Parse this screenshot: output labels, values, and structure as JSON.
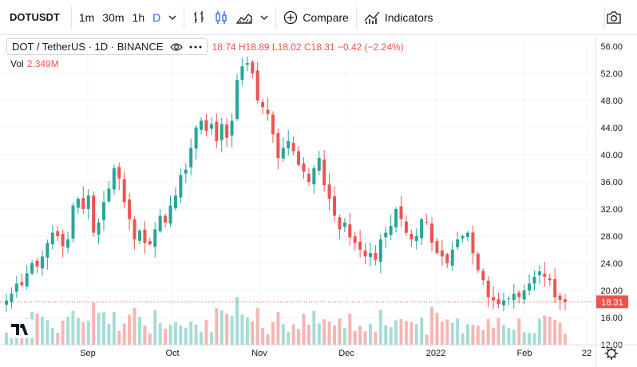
{
  "toolbar": {
    "symbol": "DOTUSDT",
    "intervals": [
      "1m",
      "30m",
      "1h",
      "D"
    ],
    "active_interval": "D",
    "compare_label": "Compare",
    "indicators_label": "Indicators"
  },
  "legend": {
    "title": "DOT / TetherUS · 1D · BINANCE",
    "ohlc": "18.74 H18.89 L18.02 C18.31 −0.42 (−2.24%)",
    "volume_label": "Vol",
    "volume_value": "2.349M"
  },
  "colors": {
    "up": "#26a69a",
    "down": "#ef5350",
    "vol_up": "#a7dcd6",
    "vol_down": "#f7b5b3",
    "grid": "#f0f3fa"
  },
  "chart_data": {
    "type": "candlestick",
    "symbol": "DOTUSDT",
    "timeframe": "1D",
    "exchange": "BINANCE",
    "x_axis_labels": [
      "Sep",
      "Oct",
      "Nov",
      "Dec",
      "2022",
      "Feb",
      "22"
    ],
    "y_axis_labels": [
      "56.00",
      "52.00",
      "48.00",
      "44.00",
      "40.00",
      "36.00",
      "32.00",
      "28.00",
      "24.00",
      "20.00",
      "16.00",
      "12.00"
    ],
    "ylim": [
      12,
      57.5
    ],
    "last_price_label": "18.31",
    "last_price": 18.31,
    "volume_range": [
      0,
      8
    ],
    "close_path": [
      18.5,
      19.5,
      21,
      20.8,
      22.5,
      24,
      23.5,
      25,
      27,
      28.5,
      28,
      26.5,
      27.5,
      32.5,
      33.5,
      32,
      34,
      28.5,
      30,
      33,
      35,
      38,
      36.5,
      33,
      30.5,
      27.5,
      28.8,
      27,
      26.8,
      29,
      31,
      30,
      32.5,
      34,
      37,
      37.8,
      41,
      44,
      45,
      43.5,
      44.5,
      42,
      44.5,
      42.5,
      45,
      51,
      53,
      53.5,
      52,
      48,
      47,
      46,
      43,
      39.5,
      41,
      42,
      40.5,
      38.5,
      37.5,
      36,
      38,
      39.5,
      35.5,
      33.5,
      31,
      29,
      30,
      27.8,
      27,
      26,
      25,
      25.5,
      24.5,
      27.5,
      28.5,
      29.5,
      32,
      30.5,
      28.5,
      27.5,
      28,
      30.5,
      30,
      27,
      25.5,
      25,
      24,
      26,
      27.5,
      28,
      28.5,
      25.5,
      23,
      21.5,
      19,
      18.5,
      18,
      18.5,
      18.8,
      19.5,
      19,
      20,
      21,
      22,
      22.8,
      22,
      21.5,
      19,
      18.6,
      18.31
    ]
  }
}
